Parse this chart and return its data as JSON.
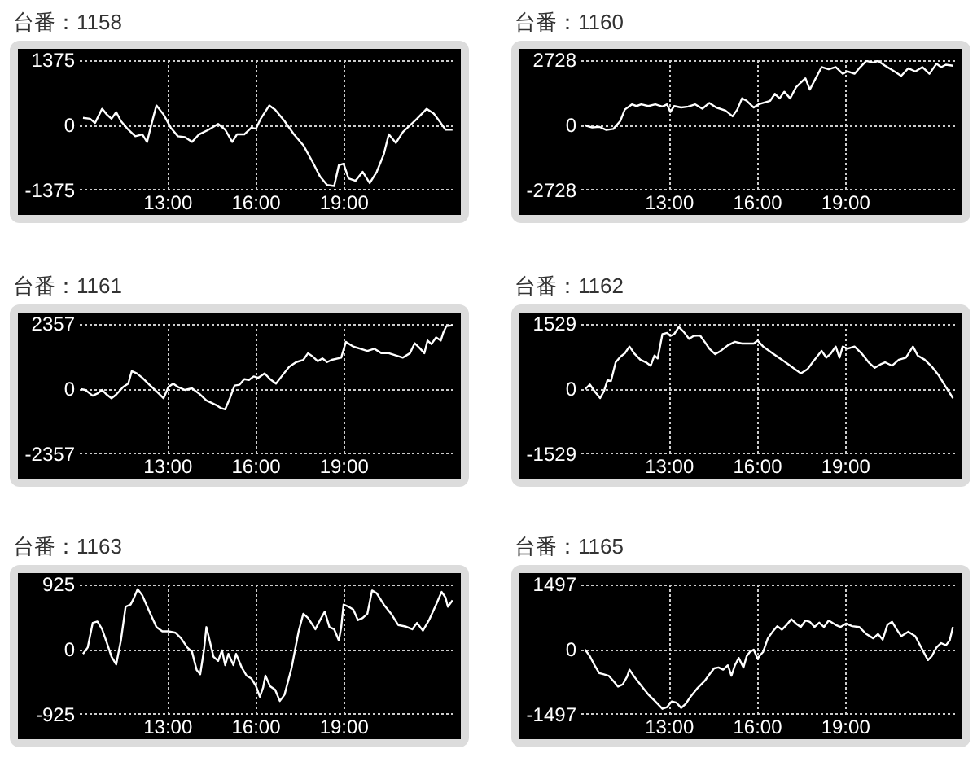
{
  "chart_data": [
    {
      "type": "line",
      "title": "台番：1158",
      "xlim": [
        10,
        22.75
      ],
      "xticks": [
        {
          "value": 13,
          "label": "13:00"
        },
        {
          "value": 16,
          "label": "16:00"
        },
        {
          "value": 19,
          "label": "19:00"
        }
      ],
      "ylim": [
        -1375,
        1375
      ],
      "yticks": [
        -1375,
        0,
        1375
      ],
      "grid": true,
      "x": [
        10.11,
        10.35,
        10.52,
        10.76,
        10.92,
        11.08,
        11.24,
        11.4,
        11.65,
        11.89,
        12.13,
        12.29,
        12.45,
        12.61,
        12.85,
        13.1,
        13.34,
        13.58,
        13.82,
        14.06,
        14.39,
        14.71,
        14.95,
        15.19,
        15.35,
        15.6,
        15.84,
        16.0,
        16.16,
        16.45,
        16.65,
        16.97,
        17.29,
        17.61,
        17.94,
        18.18,
        18.42,
        18.66,
        18.82,
        18.98,
        19.15,
        19.39,
        19.63,
        19.87,
        20.11,
        20.35,
        20.52,
        20.76,
        21.0,
        21.24,
        21.48,
        21.81,
        22.05,
        22.29,
        22.45,
        22.69
      ],
      "series": [
        {
          "color": "#ffffff",
          "values": [
            160,
            140,
            50,
            350,
            230,
            140,
            280,
            90,
            -90,
            -230,
            -190,
            -350,
            50,
            420,
            230,
            -50,
            -230,
            -250,
            -350,
            -190,
            -90,
            30,
            -90,
            -350,
            -190,
            -190,
            -50,
            -70,
            140,
            420,
            330,
            90,
            -190,
            -420,
            -790,
            -1080,
            -1260,
            -1280,
            -840,
            -810,
            -1120,
            -1170,
            -980,
            -1220,
            -980,
            -610,
            -190,
            -370,
            -140,
            0,
            140,
            350,
            250,
            50,
            -90,
            -90
          ]
        }
      ]
    },
    {
      "type": "line",
      "title": "台番：1160",
      "xlim": [
        10,
        22.75
      ],
      "xticks": [
        {
          "value": 13,
          "label": "13:00"
        },
        {
          "value": 16,
          "label": "16:00"
        },
        {
          "value": 19,
          "label": "19:00"
        }
      ],
      "ylim": [
        -2728,
        2728
      ],
      "yticks": [
        -2728,
        0,
        2728
      ],
      "grid": true,
      "x": [
        10.13,
        10.37,
        10.61,
        10.85,
        11.09,
        11.33,
        11.48,
        11.72,
        11.88,
        12.04,
        12.28,
        12.52,
        12.76,
        12.92,
        13.03,
        13.16,
        13.4,
        13.64,
        13.88,
        14.12,
        14.36,
        14.59,
        14.91,
        15.15,
        15.31,
        15.47,
        15.63,
        15.87,
        16.03,
        16.19,
        16.43,
        16.59,
        16.75,
        16.91,
        17.11,
        17.31,
        17.47,
        17.63,
        17.78,
        17.94,
        18.18,
        18.42,
        18.66,
        18.9,
        19.06,
        19.3,
        19.46,
        19.7,
        19.94,
        20.1,
        20.34,
        20.66,
        20.89,
        21.13,
        21.37,
        21.61,
        21.85,
        22.09,
        22.25,
        22.41,
        22.65
      ],
      "series": [
        {
          "color": "#ffffff",
          "values": [
            0,
            -90,
            -60,
            -190,
            -150,
            190,
            660,
            880,
            810,
            880,
            810,
            880,
            790,
            880,
            560,
            810,
            750,
            790,
            880,
            700,
            940,
            750,
            620,
            380,
            660,
            1130,
            1030,
            750,
            880,
            940,
            1030,
            1320,
            1130,
            1410,
            1130,
            1600,
            1790,
            1970,
            1500,
            1880,
            2440,
            2350,
            2440,
            2160,
            2260,
            2160,
            2390,
            2700,
            2630,
            2700,
            2500,
            2260,
            2070,
            2390,
            2260,
            2440,
            2160,
            2580,
            2440,
            2540,
            2500
          ]
        }
      ]
    },
    {
      "type": "line",
      "title": "台番：1161",
      "xlim": [
        10,
        22.75
      ],
      "xticks": [
        {
          "value": 13,
          "label": "13:00"
        },
        {
          "value": 16,
          "label": "16:00"
        },
        {
          "value": 19,
          "label": "19:00"
        }
      ],
      "ylim": [
        -2357,
        2357
      ],
      "yticks": [
        -2357,
        0,
        2357
      ],
      "grid": true,
      "x": [
        10.03,
        10.19,
        10.44,
        10.6,
        10.76,
        10.92,
        11.08,
        11.24,
        11.48,
        11.65,
        11.77,
        11.94,
        12.13,
        12.37,
        12.61,
        12.85,
        13.02,
        13.18,
        13.34,
        13.58,
        13.82,
        14.06,
        14.31,
        14.47,
        14.63,
        14.79,
        14.95,
        15.11,
        15.27,
        15.44,
        15.6,
        15.76,
        15.92,
        16.08,
        16.29,
        16.48,
        16.68,
        16.89,
        17.13,
        17.37,
        17.61,
        17.77,
        17.94,
        18.1,
        18.26,
        18.42,
        18.58,
        18.9,
        19.06,
        19.31,
        19.55,
        19.79,
        20.03,
        20.27,
        20.52,
        20.76,
        21.0,
        21.24,
        21.4,
        21.56,
        21.73,
        21.84,
        21.97,
        22.13,
        22.29,
        22.37,
        22.48,
        22.69
      ],
      "series": [
        {
          "color": "#ffffff",
          "values": [
            0,
            -30,
            -240,
            -160,
            -30,
            -200,
            -330,
            -200,
            80,
            200,
            650,
            570,
            410,
            160,
            -80,
            -330,
            80,
            200,
            80,
            -30,
            30,
            -160,
            -410,
            -490,
            -570,
            -680,
            -730,
            -330,
            130,
            160,
            360,
            330,
            460,
            410,
            570,
            360,
            200,
            490,
            810,
            980,
            1060,
            1300,
            1170,
            1010,
            1110,
            980,
            1060,
            1140,
            1710,
            1540,
            1460,
            1380,
            1460,
            1300,
            1300,
            1220,
            1140,
            1300,
            1660,
            1500,
            1300,
            1760,
            1630,
            1870,
            1760,
            2030,
            2280,
            2310
          ]
        }
      ]
    },
    {
      "type": "line",
      "title": "台番：1162",
      "xlim": [
        10,
        22.75
      ],
      "xticks": [
        {
          "value": 13,
          "label": "13:00"
        },
        {
          "value": 16,
          "label": "16:00"
        },
        {
          "value": 19,
          "label": "19:00"
        }
      ],
      "ylim": [
        -1529,
        1529
      ],
      "yticks": [
        -1529,
        0,
        1529
      ],
      "grid": true,
      "x": [
        10.13,
        10.29,
        10.45,
        10.64,
        10.77,
        10.89,
        11.01,
        11.17,
        11.33,
        11.48,
        11.64,
        11.8,
        12.01,
        12.2,
        12.36,
        12.49,
        12.6,
        12.76,
        12.92,
        13.03,
        13.16,
        13.32,
        13.48,
        13.67,
        13.83,
        14.04,
        14.2,
        14.36,
        14.56,
        14.75,
        14.99,
        15.23,
        15.47,
        15.71,
        15.87,
        16.0,
        16.19,
        16.51,
        16.83,
        17.15,
        17.47,
        17.7,
        17.94,
        18.18,
        18.34,
        18.5,
        18.66,
        18.79,
        18.9,
        19.06,
        19.3,
        19.54,
        19.78,
        19.99,
        20.18,
        20.34,
        20.58,
        20.81,
        21.05,
        21.29,
        21.45,
        21.69,
        21.93,
        22.17,
        22.41,
        22.65
      ],
      "series": [
        {
          "color": "#ffffff",
          "values": [
            0,
            110,
            -50,
            -210,
            -50,
            210,
            190,
            630,
            760,
            840,
            1000,
            840,
            690,
            630,
            550,
            790,
            720,
            1290,
            1320,
            1250,
            1290,
            1460,
            1350,
            1180,
            1250,
            1260,
            1110,
            950,
            820,
            900,
            1030,
            1110,
            1070,
            1070,
            1070,
            1140,
            1000,
            840,
            690,
            530,
            370,
            470,
            690,
            900,
            740,
            840,
            1000,
            740,
            1000,
            950,
            1000,
            840,
            630,
            500,
            580,
            630,
            550,
            690,
            740,
            1000,
            790,
            690,
            530,
            320,
            50,
            -210
          ]
        }
      ]
    },
    {
      "type": "line",
      "title": "台番：1163",
      "xlim": [
        10,
        22.75
      ],
      "xticks": [
        {
          "value": 13,
          "label": "13:00"
        },
        {
          "value": 16,
          "label": "16:00"
        },
        {
          "value": 19,
          "label": "19:00"
        }
      ],
      "ylim": [
        -925,
        925
      ],
      "yticks": [
        -925,
        0,
        925
      ],
      "grid": true,
      "x": [
        10.11,
        10.27,
        10.44,
        10.6,
        10.76,
        10.92,
        11.08,
        11.24,
        11.4,
        11.56,
        11.73,
        11.84,
        11.97,
        12.13,
        12.37,
        12.61,
        12.81,
        13.02,
        13.26,
        13.45,
        13.66,
        13.82,
        13.98,
        14.1,
        14.23,
        14.31,
        14.42,
        14.55,
        14.71,
        14.84,
        14.95,
        15.06,
        15.23,
        15.32,
        15.52,
        15.68,
        15.84,
        16.0,
        16.13,
        16.24,
        16.32,
        16.48,
        16.65,
        16.81,
        16.97,
        17.21,
        17.45,
        17.61,
        17.77,
        18.02,
        18.18,
        18.34,
        18.5,
        18.66,
        18.82,
        18.9,
        18.98,
        19.15,
        19.31,
        19.47,
        19.63,
        19.79,
        19.95,
        20.11,
        20.35,
        20.6,
        20.84,
        21.08,
        21.32,
        21.48,
        21.68,
        21.89,
        22.13,
        22.32,
        22.45,
        22.53,
        22.69
      ],
      "series": [
        {
          "color": "#ffffff",
          "values": [
            -60,
            30,
            380,
            400,
            290,
            100,
            -100,
            -210,
            130,
            610,
            640,
            730,
            860,
            770,
            540,
            320,
            260,
            260,
            240,
            160,
            30,
            -30,
            -290,
            -350,
            0,
            320,
            130,
            -100,
            -160,
            -10,
            -220,
            -60,
            -220,
            -60,
            -260,
            -370,
            -410,
            -520,
            -670,
            -540,
            -370,
            -520,
            -570,
            -730,
            -640,
            -260,
            260,
            510,
            450,
            290,
            420,
            540,
            320,
            290,
            130,
            320,
            640,
            610,
            570,
            420,
            450,
            510,
            840,
            800,
            640,
            510,
            350,
            330,
            290,
            380,
            270,
            420,
            640,
            820,
            740,
            610,
            700
          ]
        }
      ]
    },
    {
      "type": "line",
      "title": "台番：1165",
      "xlim": [
        10,
        22.75
      ],
      "xticks": [
        {
          "value": 13,
          "label": "13:00"
        },
        {
          "value": 16,
          "label": "16:00"
        },
        {
          "value": 19,
          "label": "19:00"
        }
      ],
      "ylim": [
        -1497,
        1497
      ],
      "yticks": [
        -1497,
        0,
        1497
      ],
      "grid": true,
      "x": [
        10.13,
        10.29,
        10.45,
        10.61,
        10.77,
        10.93,
        11.09,
        11.25,
        11.41,
        11.56,
        11.64,
        11.8,
        12.04,
        12.28,
        12.52,
        12.76,
        12.92,
        13.08,
        13.24,
        13.4,
        13.56,
        13.72,
        13.96,
        14.2,
        14.36,
        14.52,
        14.67,
        14.83,
        14.99,
        15.11,
        15.23,
        15.36,
        15.52,
        15.63,
        15.74,
        15.87,
        16.0,
        16.06,
        16.19,
        16.35,
        16.51,
        16.67,
        16.83,
        16.99,
        17.15,
        17.31,
        17.47,
        17.63,
        17.78,
        17.94,
        18.1,
        18.26,
        18.42,
        18.66,
        18.82,
        19.01,
        19.22,
        19.46,
        19.7,
        19.94,
        20.1,
        20.26,
        20.42,
        20.58,
        20.74,
        20.89,
        21.13,
        21.37,
        21.61,
        21.8,
        21.93,
        22.09,
        22.25,
        22.41,
        22.54,
        22.65
      ],
      "series": [
        {
          "color": "#ffffff",
          "values": [
            0,
            -150,
            -360,
            -540,
            -570,
            -600,
            -720,
            -850,
            -800,
            -620,
            -460,
            -620,
            -830,
            -1030,
            -1190,
            -1360,
            -1320,
            -1190,
            -1220,
            -1340,
            -1240,
            -1080,
            -880,
            -720,
            -570,
            -430,
            -410,
            -460,
            -360,
            -600,
            -360,
            -190,
            -410,
            -150,
            -50,
            0,
            -210,
            -150,
            -50,
            260,
            410,
            540,
            460,
            570,
            700,
            600,
            520,
            670,
            640,
            520,
            620,
            520,
            670,
            570,
            520,
            600,
            540,
            520,
            360,
            260,
            360,
            230,
            570,
            640,
            460,
            310,
            410,
            310,
            0,
            -240,
            -150,
            50,
            150,
            100,
            210,
            520
          ]
        }
      ]
    }
  ]
}
